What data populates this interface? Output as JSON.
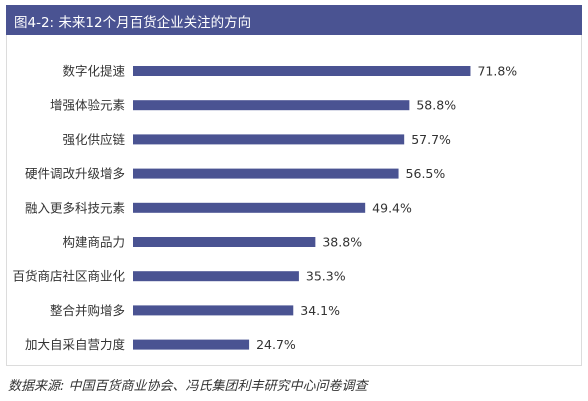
{
  "header": {
    "title": "图4-2: 未来12个月百货企业关注的方向"
  },
  "chart_data": {
    "type": "bar",
    "orientation": "horizontal",
    "categories": [
      "数字化提速",
      "增强体验元素",
      "强化供应链",
      "硬件调改升级增多",
      "融入更多科技元素",
      "构建商品力",
      "百货商店社区商业化",
      "整合并购增多",
      "加大自采自营力度"
    ],
    "values": [
      71.8,
      58.8,
      57.7,
      56.5,
      49.4,
      38.8,
      35.3,
      34.1,
      24.7
    ],
    "value_labels": [
      "71.8%",
      "58.8%",
      "57.7%",
      "56.5%",
      "49.4%",
      "38.8%",
      "35.3%",
      "34.1%",
      "24.7%"
    ],
    "xlim": [
      0,
      100
    ],
    "grid": false,
    "legend": "none",
    "bar_color": "#4a5392"
  },
  "source": "数据来源: 中国百货商业协会、冯氏集团利丰研究中心问卷调查",
  "colors": {
    "header_bg": "#4a5392",
    "bar": "#4a5392",
    "text": "#333333"
  }
}
